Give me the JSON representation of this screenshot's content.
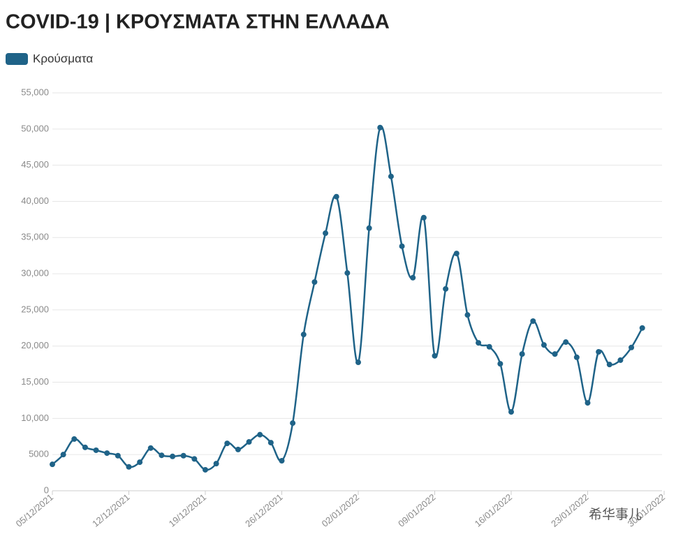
{
  "chart_data": {
    "type": "line",
    "title": "COVID-19 | ΚΡΟΥΣΜΑΤΑ ΣΤΗΝ ΕΛΛΑΔΑ",
    "watermark": "希华事儿",
    "x": [
      "05/12/2021",
      "06/12/2021",
      "07/12/2021",
      "08/12/2021",
      "09/12/2021",
      "10/12/2021",
      "11/12/2021",
      "12/12/2021",
      "13/12/2021",
      "14/12/2021",
      "15/12/2021",
      "16/12/2021",
      "17/12/2021",
      "18/12/2021",
      "19/12/2021",
      "20/12/2021",
      "21/12/2021",
      "22/12/2021",
      "23/12/2021",
      "24/12/2021",
      "25/12/2021",
      "26/12/2021",
      "27/12/2021",
      "28/12/2021",
      "29/12/2021",
      "30/12/2021",
      "31/12/2021",
      "01/01/2022",
      "02/01/2022",
      "03/01/2022",
      "04/01/2022",
      "05/01/2022",
      "06/01/2022",
      "07/01/2022",
      "08/01/2022",
      "09/01/2022",
      "10/01/2022",
      "11/01/2022",
      "12/01/2022",
      "13/01/2022",
      "14/01/2022",
      "15/01/2022",
      "16/01/2022",
      "17/01/2022",
      "18/01/2022",
      "19/01/2022",
      "20/01/2022",
      "21/01/2022",
      "22/01/2022",
      "23/01/2022",
      "24/01/2022",
      "25/01/2022",
      "26/01/2022",
      "27/01/2022",
      "28/01/2022"
    ],
    "series": [
      {
        "name": "Κρούσματα",
        "color": "#1f6388",
        "values": [
          3650,
          5000,
          7150,
          6000,
          5600,
          5200,
          4850,
          3300,
          3950,
          5900,
          4900,
          4750,
          4850,
          4400,
          2900,
          3750,
          6550,
          5700,
          6750,
          7750,
          6650,
          4150,
          9350,
          21600,
          28850,
          35600,
          40650,
          30100,
          17750,
          36300,
          50200,
          43450,
          33800,
          29450,
          37750,
          18650,
          27900,
          32800,
          24300,
          20450,
          19900,
          17550,
          10900,
          18900,
          23450,
          20150,
          18900,
          20550,
          18450,
          12150,
          19200,
          17450,
          18050,
          19800,
          22500
        ]
      }
    ],
    "xlim": [
      "05/12/2021",
      "30/01/2022"
    ],
    "xticks": [
      "05/12/2021",
      "12/12/2021",
      "19/12/2021",
      "26/12/2021",
      "02/01/2022",
      "09/01/2022",
      "16/01/2022",
      "23/01/2022",
      "30/01/2022"
    ],
    "ylim": [
      0,
      55000
    ],
    "yticks": [
      0,
      5000,
      {
        "value": 10000,
        "label": "10,000"
      },
      {
        "value": 15000,
        "label": "15,000"
      },
      {
        "value": 20000,
        "label": "20,000"
      },
      {
        "value": 25000,
        "label": "25,000"
      },
      {
        "value": 30000,
        "label": "30,000"
      },
      {
        "value": 35000,
        "label": "35,000"
      },
      {
        "value": 40000,
        "label": "40,000"
      },
      {
        "value": 45000,
        "label": "45,000"
      },
      {
        "value": 50000,
        "label": "50,000"
      },
      {
        "value": 55000,
        "label": "55,000"
      }
    ],
    "grid": true,
    "legend": "top-left"
  }
}
